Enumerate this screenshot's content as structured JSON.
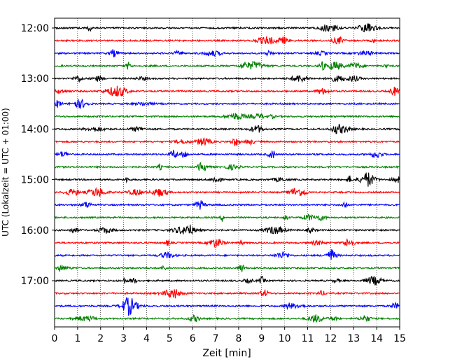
{
  "chart_data": {
    "type": "line",
    "xlabel": "Zeit  [min]",
    "ylabel": "UTC (Lokalzeit = UTC + 01:00)",
    "xlim": [
      0,
      15
    ],
    "x_ticks": [
      "0",
      "1",
      "2",
      "3",
      "4",
      "5",
      "6",
      "7",
      "8",
      "9",
      "10",
      "11",
      "12",
      "13",
      "14",
      "15"
    ],
    "y_ticks": [
      "12:00",
      "13:00",
      "14:00",
      "15:00",
      "16:00",
      "17:00"
    ],
    "grid": "vertical dotted lines at each minute",
    "trace_start": "12:00",
    "trace_interval_minutes": 15,
    "trace_count": 24,
    "trace_colors": [
      "#000000",
      "#ff0000",
      "#0000ff",
      "#008000"
    ]
  }
}
